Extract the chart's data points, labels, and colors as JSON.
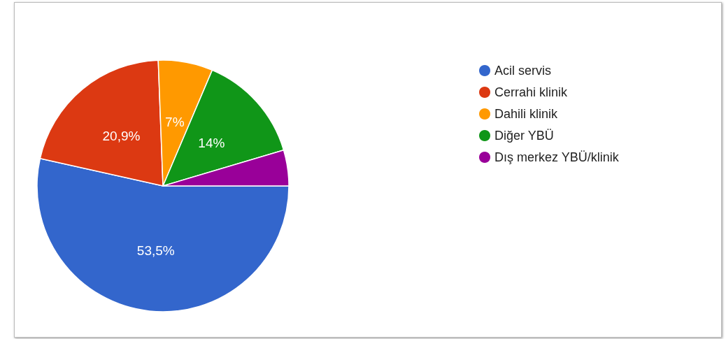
{
  "chart_data": {
    "type": "pie",
    "categories": [
      "Acil servis",
      "Cerrahi klinik",
      "Dahili klinik",
      "Diğer YBÜ",
      "Dış merkez YBÜ/klinik"
    ],
    "values": [
      53.5,
      20.9,
      7,
      14,
      4.6
    ],
    "colors": [
      "#3366cc",
      "#dc3912",
      "#ff9900",
      "#109618",
      "#990099"
    ],
    "value_labels": [
      "53,5%",
      "20,9%",
      "7%",
      "14%",
      null
    ],
    "legend": "right"
  }
}
